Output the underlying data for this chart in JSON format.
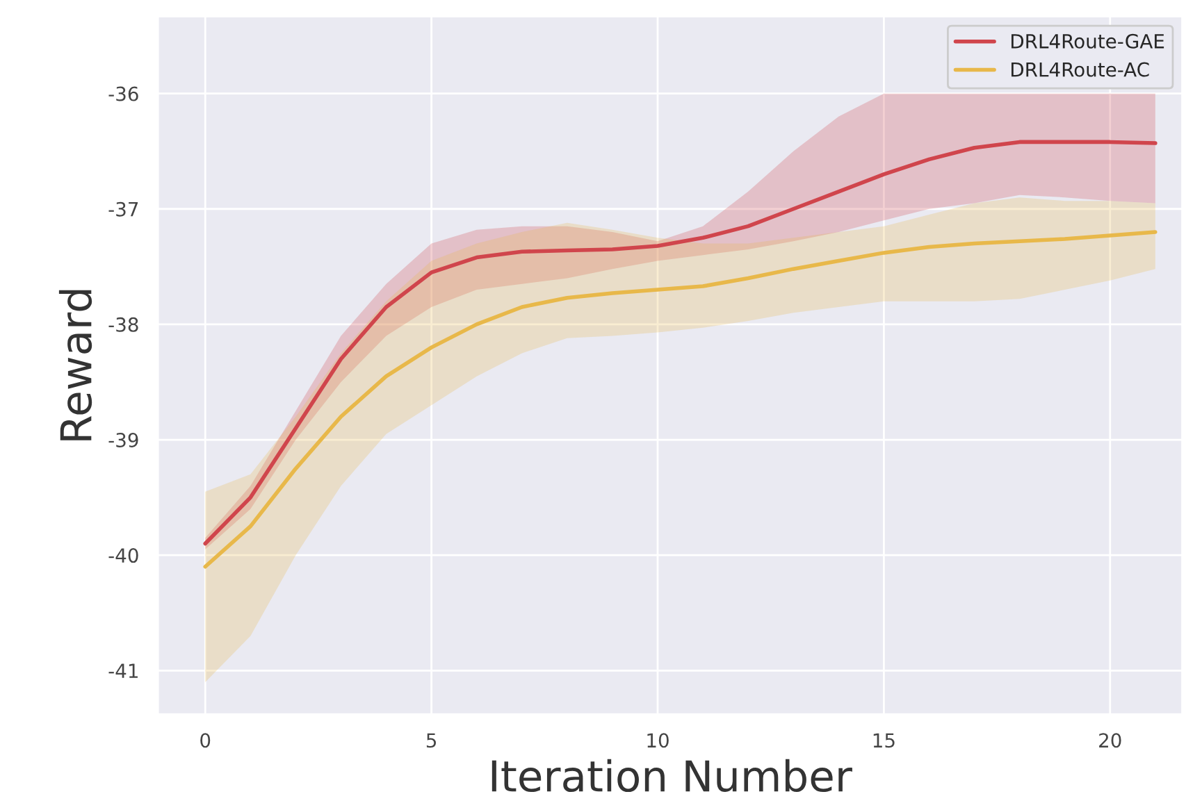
{
  "chart_data": {
    "type": "line",
    "xlabel": "Iteration Number",
    "ylabel": "Reward",
    "x": [
      0,
      1,
      2,
      3,
      4,
      5,
      6,
      7,
      8,
      9,
      10,
      11,
      12,
      13,
      14,
      15,
      16,
      17,
      18,
      19,
      20,
      21
    ],
    "series": [
      {
        "name": "DRL4Route-GAE",
        "color": "#d0454c",
        "values": [
          -39.9,
          -39.5,
          -38.9,
          -38.3,
          -37.85,
          -37.55,
          -37.42,
          -37.37,
          -37.36,
          -37.35,
          -37.32,
          -37.25,
          -37.15,
          -37.0,
          -36.85,
          -36.7,
          -36.57,
          -36.47,
          -36.42,
          -36.42,
          -36.42,
          -36.43
        ],
        "upper": [
          -39.85,
          -39.4,
          -38.75,
          -38.1,
          -37.65,
          -37.3,
          -37.18,
          -37.15,
          -37.15,
          -37.2,
          -37.28,
          -37.15,
          -36.85,
          -36.5,
          -36.2,
          -36.0,
          -36.0,
          -36.0,
          -36.0,
          -36.0,
          -36.0,
          -36.0
        ],
        "lower": [
          -39.95,
          -39.6,
          -39.0,
          -38.5,
          -38.1,
          -37.85,
          -37.7,
          -37.65,
          -37.6,
          -37.52,
          -37.45,
          -37.4,
          -37.35,
          -37.28,
          -37.2,
          -37.1,
          -37.0,
          -36.95,
          -36.88,
          -36.9,
          -36.93,
          -36.95
        ]
      },
      {
        "name": "DRL4Route-AC",
        "color": "#e8b84a",
        "values": [
          -40.1,
          -39.75,
          -39.25,
          -38.8,
          -38.45,
          -38.2,
          -38.0,
          -37.85,
          -37.77,
          -37.73,
          -37.7,
          -37.67,
          -37.6,
          -37.52,
          -37.45,
          -37.38,
          -37.33,
          -37.3,
          -37.28,
          -37.26,
          -37.23,
          -37.2
        ],
        "upper": [
          -39.45,
          -39.3,
          -38.8,
          -38.25,
          -37.8,
          -37.45,
          -37.3,
          -37.2,
          -37.12,
          -37.18,
          -37.25,
          -37.3,
          -37.3,
          -37.25,
          -37.2,
          -37.15,
          -37.05,
          -36.95,
          -36.9,
          -36.93,
          -36.93,
          -36.95
        ],
        "lower": [
          -41.1,
          -40.7,
          -40.0,
          -39.4,
          -38.95,
          -38.7,
          -38.45,
          -38.25,
          -38.12,
          -38.1,
          -38.07,
          -38.03,
          -37.97,
          -37.9,
          -37.85,
          -37.8,
          -37.8,
          -37.8,
          -37.78,
          -37.7,
          -37.62,
          -37.52
        ]
      }
    ],
    "xlim": [
      -1.05,
      21.6
    ],
    "xticks": [
      0,
      5,
      10,
      15,
      20
    ],
    "ylim": [
      -41.38,
      -35.33
    ],
    "yticks": [
      -41,
      -40,
      -39,
      -38,
      -37,
      -36
    ],
    "grid": true,
    "legend": "top right",
    "marker": "none",
    "line_style": "solid"
  }
}
